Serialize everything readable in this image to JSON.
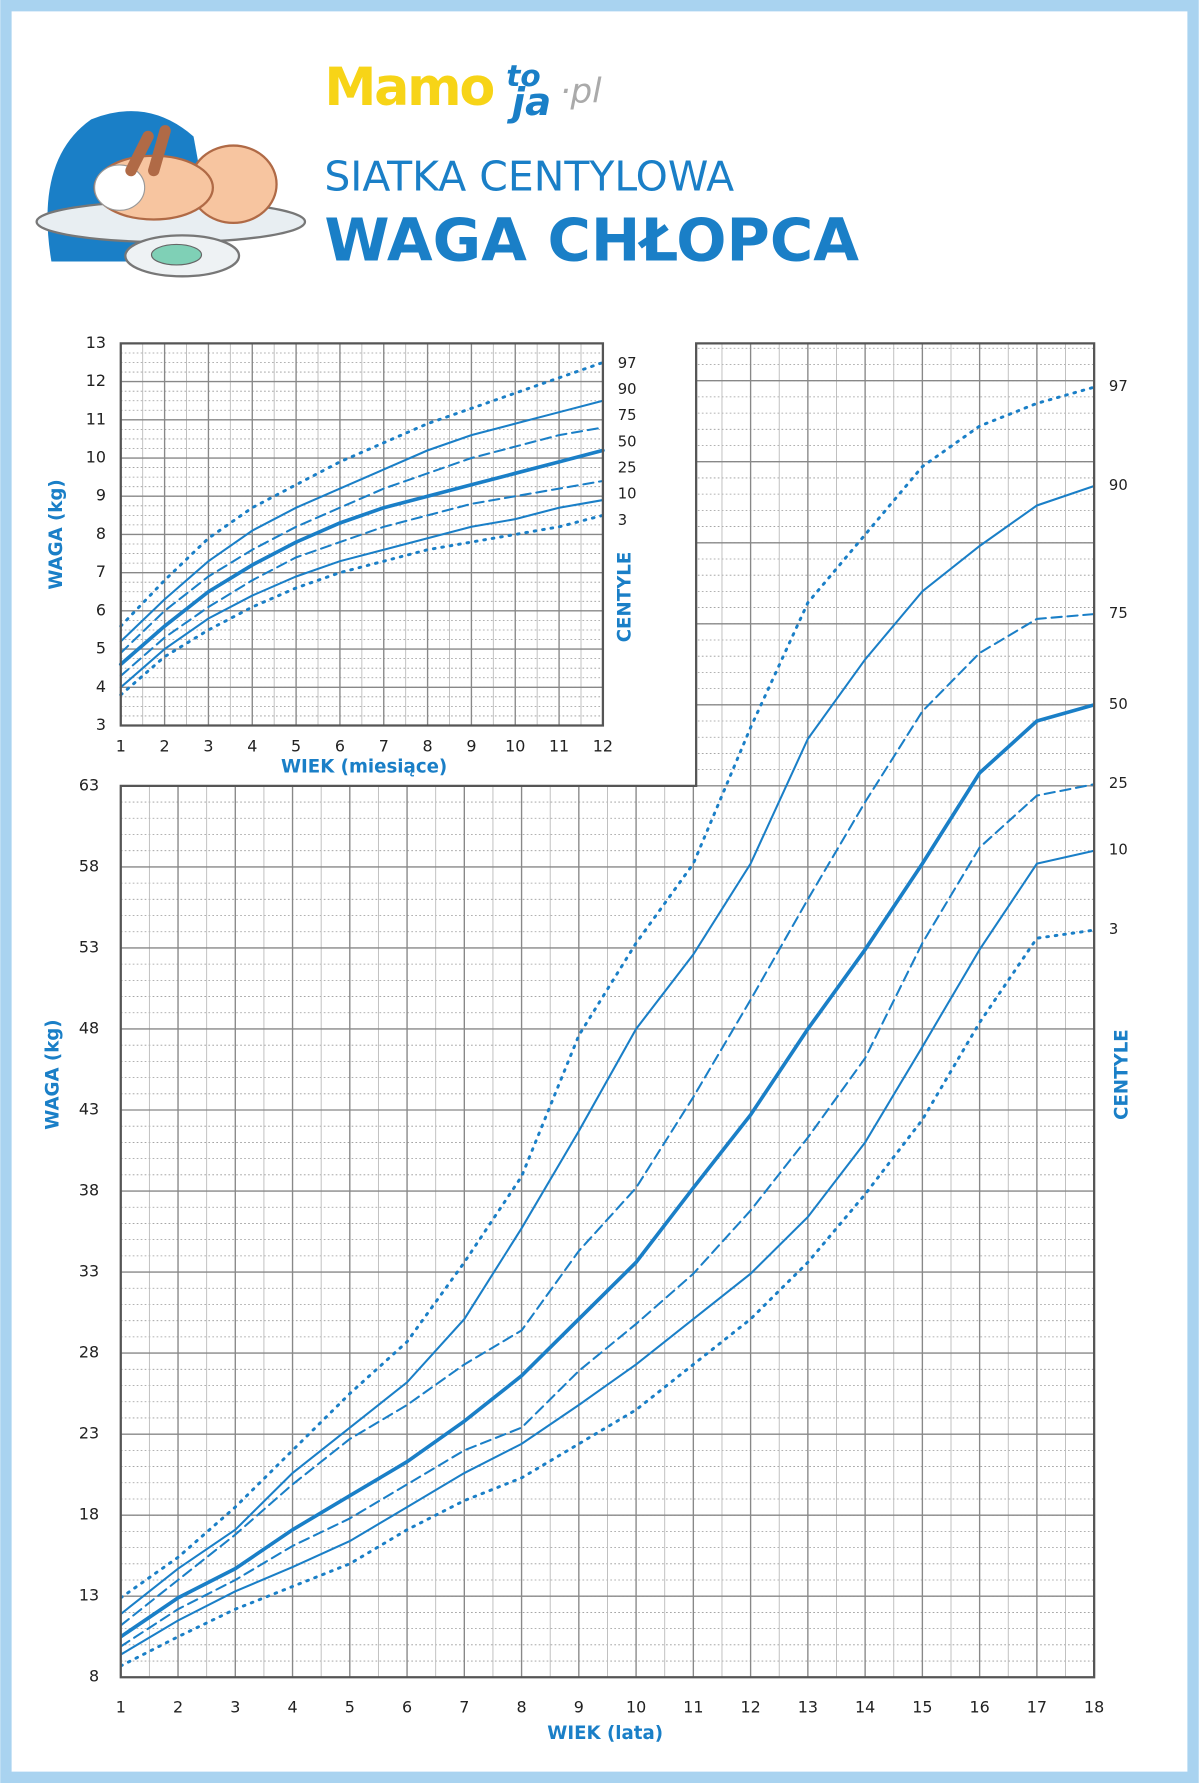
{
  "header": {
    "logo": [
      "Mamo",
      "to",
      "ja",
      "·pl"
    ],
    "title": "SIATKA CENTYLOWA",
    "subtitle": "WAGA CHŁOPCA"
  },
  "chart_data": [
    {
      "type": "line",
      "xlabel": "WIEK (miesiące)",
      "ylabel": "WAGA (kg)",
      "right_label": "CENTYLE",
      "color": "#1a7fc7",
      "grid": true,
      "x": [
        1,
        2,
        3,
        4,
        5,
        6,
        7,
        8,
        9,
        10,
        11,
        12
      ],
      "xlim": [
        1,
        12
      ],
      "xticks": [
        1,
        2,
        3,
        4,
        5,
        6,
        7,
        8,
        9,
        10,
        11,
        12
      ],
      "ylim": [
        3,
        13
      ],
      "yticks": [
        3,
        4,
        5,
        6,
        7,
        8,
        9,
        10,
        11,
        12,
        13
      ],
      "series": [
        {
          "name": "97",
          "style": "dotted",
          "values": [
            5.6,
            6.8,
            7.9,
            8.7,
            9.3,
            9.9,
            10.4,
            10.9,
            11.3,
            11.7,
            12.1,
            12.5
          ]
        },
        {
          "name": "90",
          "style": "solid",
          "values": [
            5.2,
            6.3,
            7.3,
            8.1,
            8.7,
            9.2,
            9.7,
            10.2,
            10.6,
            10.9,
            11.2,
            11.5
          ]
        },
        {
          "name": "75",
          "style": "dashed",
          "values": [
            4.9,
            6.0,
            6.9,
            7.6,
            8.2,
            8.7,
            9.2,
            9.6,
            10.0,
            10.3,
            10.6,
            10.8
          ]
        },
        {
          "name": "50",
          "style": "bold",
          "values": [
            4.6,
            5.6,
            6.5,
            7.2,
            7.8,
            8.3,
            8.7,
            9.0,
            9.3,
            9.6,
            9.9,
            10.2
          ]
        },
        {
          "name": "25",
          "style": "dashed",
          "values": [
            4.3,
            5.3,
            6.1,
            6.8,
            7.4,
            7.8,
            8.2,
            8.5,
            8.8,
            9.0,
            9.2,
            9.4
          ]
        },
        {
          "name": "10",
          "style": "solid",
          "values": [
            4.0,
            5.0,
            5.8,
            6.4,
            6.9,
            7.3,
            7.6,
            7.9,
            8.2,
            8.4,
            8.7,
            8.9
          ]
        },
        {
          "name": "3",
          "style": "dotted",
          "values": [
            3.8,
            4.8,
            5.5,
            6.1,
            6.6,
            7.0,
            7.3,
            7.6,
            7.8,
            8.0,
            8.2,
            8.5
          ]
        }
      ]
    },
    {
      "type": "line",
      "xlabel": "WIEK (lata)",
      "ylabel": "WAGA (kg)",
      "right_label": "CENTYLE",
      "color": "#1a7fc7",
      "grid": true,
      "x": [
        1,
        2,
        3,
        4,
        5,
        6,
        7,
        8,
        9,
        10,
        11,
        12,
        13,
        14,
        15,
        16,
        17,
        18
      ],
      "xlim": [
        1,
        18
      ],
      "xticks": [
        1,
        2,
        3,
        4,
        5,
        6,
        7,
        8,
        9,
        10,
        11,
        12,
        13,
        14,
        15,
        16,
        17,
        18
      ],
      "ylim": [
        8,
        90.3
      ],
      "yticks": [
        8,
        13,
        18,
        23,
        28,
        33,
        38,
        43,
        48,
        53,
        58,
        63
      ],
      "series": [
        {
          "name": "97",
          "style": "dotted",
          "values": [
            12.9,
            15.4,
            18.5,
            22,
            25.5,
            28.7,
            33.6,
            38.9,
            47.6,
            53.3,
            58.2,
            66.6,
            74.3,
            78.5,
            82.7,
            85.2,
            86.6,
            87.6
          ]
        },
        {
          "name": "90",
          "style": "solid",
          "values": [
            11.9,
            14.7,
            17.1,
            20.6,
            23.4,
            26.2,
            30.1,
            35.7,
            41.7,
            48,
            52.6,
            58.2,
            65.9,
            70.8,
            75,
            77.8,
            80.3,
            81.5
          ]
        },
        {
          "name": "75",
          "style": "dashed",
          "values": [
            11.2,
            14,
            16.8,
            19.9,
            22.7,
            24.8,
            27.3,
            29.4,
            34.3,
            38.2,
            43.8,
            49.8,
            56,
            62,
            67.6,
            71.2,
            73.3,
            73.6
          ]
        },
        {
          "name": "50",
          "style": "bold",
          "values": [
            10.5,
            12.9,
            14.7,
            17.1,
            19.2,
            21.3,
            23.8,
            26.6,
            30.1,
            33.6,
            38.2,
            42.7,
            48,
            52.9,
            58.2,
            63.8,
            67,
            68
          ]
        },
        {
          "name": "25",
          "style": "dashed",
          "values": [
            9.9,
            12.2,
            14,
            16.1,
            17.8,
            19.9,
            22,
            23.4,
            26.9,
            29.8,
            32.9,
            36.8,
            41.3,
            46.2,
            53.3,
            59.2,
            62.4,
            63.1
          ]
        },
        {
          "name": "10",
          "style": "solid",
          "values": [
            9.4,
            11.5,
            13.3,
            14.8,
            16.4,
            18.5,
            20.6,
            22.4,
            24.8,
            27.3,
            30.1,
            32.9,
            36.4,
            41,
            46.9,
            52.9,
            58.2,
            59
          ]
        },
        {
          "name": "3",
          "style": "dotted",
          "values": [
            8.7,
            10.5,
            12.2,
            13.6,
            15,
            17.1,
            18.9,
            20.3,
            22.4,
            24.5,
            27.3,
            30.1,
            33.6,
            37.8,
            42.4,
            48.4,
            53.6,
            54.1
          ]
        }
      ]
    }
  ]
}
